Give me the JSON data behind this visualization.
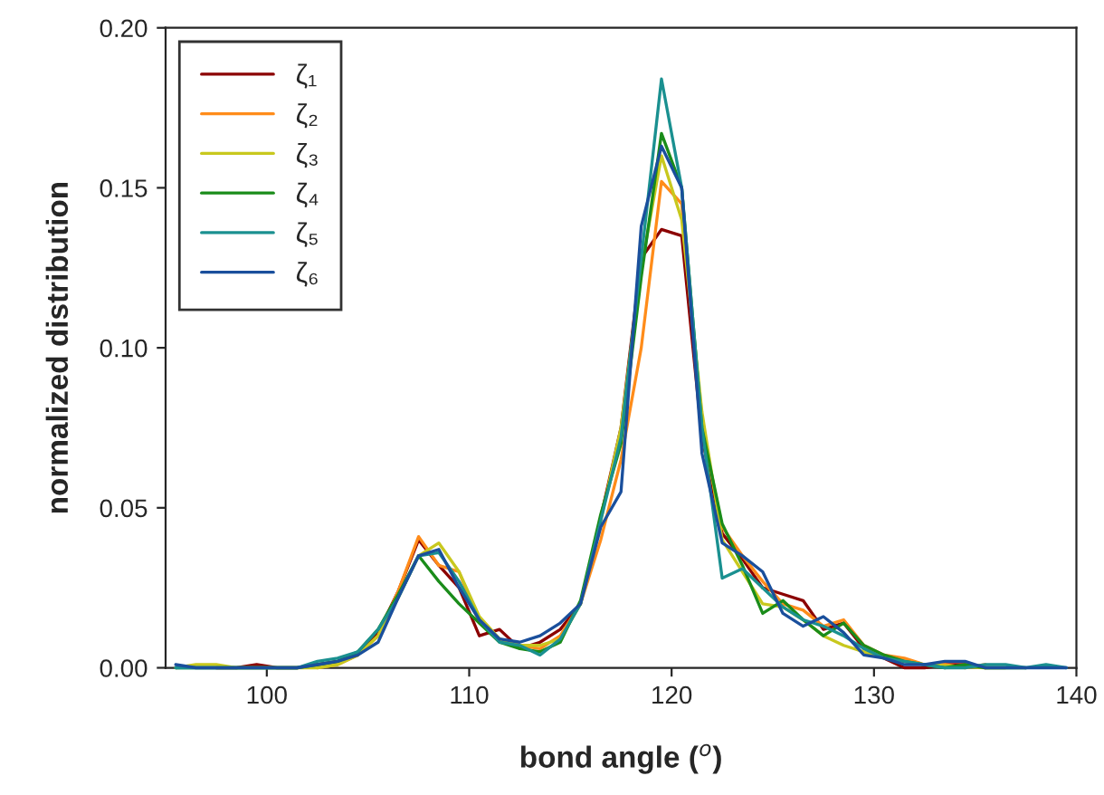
{
  "chart_data": {
    "type": "line",
    "xlabel": "bond angle ($^{o}$)",
    "ylabel": "normalized distribution",
    "x": [
      95.5,
      96.5,
      97.5,
      98.5,
      99.5,
      100.5,
      101.5,
      102.5,
      103.5,
      104.5,
      105.5,
      106.5,
      107.5,
      108.5,
      109.5,
      110.5,
      111.5,
      112.5,
      113.5,
      114.5,
      115.5,
      116.5,
      117.5,
      118.5,
      119.5,
      120.5,
      121.5,
      122.5,
      123.5,
      124.5,
      125.5,
      126.5,
      127.5,
      128.5,
      129.5,
      130.5,
      131.5,
      132.5,
      133.5,
      134.5,
      135.5,
      136.5,
      137.5,
      138.5,
      139.5
    ],
    "series": [
      {
        "name": "ζ₁",
        "color": "#8b0000",
        "values": [
          null,
          null,
          0.0,
          0.0,
          0.001,
          0.0,
          0.0,
          0.001,
          0.002,
          0.004,
          0.011,
          0.024,
          0.04,
          0.032,
          0.025,
          0.01,
          0.012,
          0.006,
          0.008,
          0.012,
          0.02,
          0.047,
          0.075,
          0.128,
          0.137,
          0.135,
          0.072,
          0.042,
          0.034,
          0.025,
          0.023,
          0.021,
          0.012,
          0.014,
          0.006,
          0.003,
          0.0,
          0.0,
          0.001,
          0.001,
          0.0,
          null,
          null,
          null,
          null
        ]
      },
      {
        "name": "ζ₂",
        "color": "#ff8c1a",
        "values": [
          null,
          null,
          null,
          null,
          null,
          null,
          null,
          0.0,
          0.001,
          0.004,
          0.01,
          0.024,
          0.041,
          0.032,
          0.03,
          0.014,
          0.009,
          0.007,
          0.006,
          0.01,
          0.02,
          0.04,
          0.065,
          0.1,
          0.152,
          0.145,
          0.075,
          0.044,
          0.035,
          0.027,
          0.02,
          0.018,
          0.013,
          0.015,
          0.007,
          0.004,
          0.003,
          0.001,
          0.001,
          0.0,
          0.001,
          null,
          null,
          null,
          null
        ]
      },
      {
        "name": "ζ₃",
        "color": "#c8c81e",
        "values": [
          0.0,
          0.001,
          0.001,
          0.0,
          0.0,
          0.0,
          0.0,
          0.0,
          0.001,
          0.004,
          0.01,
          0.022,
          0.035,
          0.039,
          0.03,
          0.016,
          0.009,
          0.007,
          0.007,
          0.009,
          0.02,
          0.046,
          0.075,
          0.125,
          0.16,
          0.14,
          0.08,
          0.04,
          0.03,
          0.02,
          0.019,
          0.015,
          0.01,
          0.007,
          0.005,
          0.003,
          0.002,
          0.001,
          null,
          null,
          0.0,
          0.0,
          null,
          null,
          null
        ]
      },
      {
        "name": "ζ₄",
        "color": "#1a8c1a",
        "values": [
          0.0,
          0.0,
          0.0,
          0.0,
          0.0,
          0.0,
          0.0,
          0.001,
          0.002,
          0.005,
          0.012,
          0.023,
          0.035,
          0.027,
          0.02,
          0.014,
          0.008,
          0.006,
          0.005,
          0.008,
          0.021,
          0.048,
          0.07,
          0.122,
          0.167,
          0.15,
          0.075,
          0.045,
          0.032,
          0.017,
          0.021,
          0.015,
          0.01,
          0.014,
          0.007,
          0.004,
          0.002,
          0.001,
          0.0,
          0.001,
          0.0,
          0.0,
          0.0,
          null,
          null
        ]
      },
      {
        "name": "ζ₅",
        "color": "#1a9090",
        "values": [
          0.0,
          0.0,
          0.0,
          0.0,
          0.0,
          0.0,
          0.0,
          0.002,
          0.003,
          0.005,
          0.012,
          0.022,
          0.035,
          0.036,
          0.027,
          0.015,
          0.008,
          0.007,
          0.004,
          0.009,
          0.02,
          0.046,
          0.072,
          0.128,
          0.184,
          0.15,
          0.075,
          0.028,
          0.031,
          0.025,
          0.019,
          0.015,
          0.013,
          0.01,
          0.006,
          0.003,
          0.002,
          0.001,
          0.0,
          0.0,
          0.001,
          0.001,
          0.0,
          0.001,
          0.0
        ]
      },
      {
        "name": "ζ₆",
        "color": "#1a4f9c",
        "values": [
          0.001,
          0.0,
          0.0,
          0.0,
          0.0,
          0.0,
          0.0,
          0.001,
          0.002,
          0.004,
          0.008,
          0.022,
          0.035,
          0.037,
          0.025,
          0.015,
          0.009,
          0.008,
          0.01,
          0.014,
          0.02,
          0.044,
          0.055,
          0.138,
          0.163,
          0.15,
          0.067,
          0.039,
          0.035,
          0.03,
          0.017,
          0.013,
          0.016,
          0.011,
          0.004,
          0.003,
          0.001,
          0.001,
          0.002,
          0.002,
          0.0,
          0.0,
          0.0,
          0.0,
          0.0
        ]
      }
    ],
    "xlim": [
      95,
      140
    ],
    "xticks": [
      100,
      110,
      120,
      130,
      140
    ],
    "ylim": [
      0,
      0.2
    ],
    "yticks": [
      {
        "value": 0,
        "label": "0.00"
      },
      {
        "value": 0.05,
        "label": "0.05"
      },
      {
        "value": 0.1,
        "label": "0.10"
      },
      {
        "value": 0.15,
        "label": "0.15"
      },
      {
        "value": 0.2,
        "label": "0.20"
      }
    ],
    "grid": false,
    "legend": "top left",
    "marker": "none",
    "line_style": "solid"
  }
}
